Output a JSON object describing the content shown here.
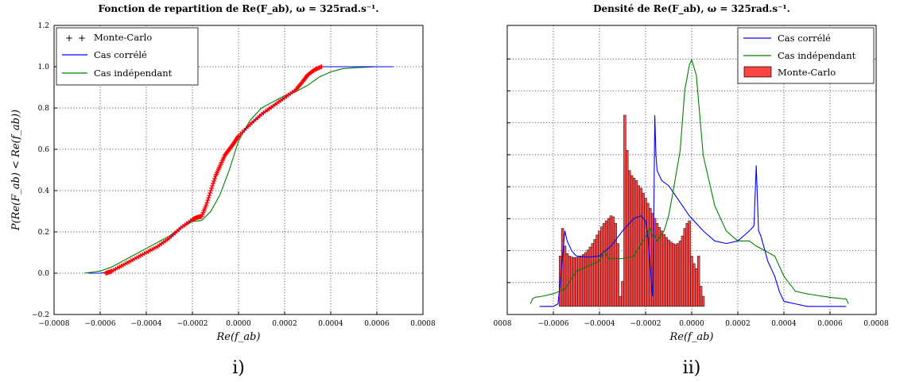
{
  "chart_data": [
    {
      "type": "line",
      "title": "Fonction de repartition de Re(F_ab), ω = 325rad.s⁻¹.",
      "xlabel": "Re(f_ab)",
      "ylabel": "P(Re(F_ab) < Re(f_ab))",
      "xlim": [
        -0.0008,
        0.0008
      ],
      "ylim": [
        -0.2,
        1.2
      ],
      "x_tick_labels": [
        "−0.0008",
        "−0.0006",
        "−0.0004",
        "−0.0002",
        "0.0000",
        "0.0002",
        "0.0004",
        "0.0006",
        "0.0008"
      ],
      "y_tick_labels": [
        "−0.2",
        "0.0",
        "0.2",
        "0.4",
        "0.6",
        "0.8",
        "1.0",
        "1.2"
      ],
      "grid": true,
      "legend_position": "top-left",
      "caption": "i)",
      "series": [
        {
          "name": "Monte-Carlo",
          "style": "markers",
          "color": "#ff0000",
          "x": [
            -0.000575,
            -0.00055,
            -0.0005,
            -0.00045,
            -0.0004,
            -0.00035,
            -0.0003,
            -0.00025,
            -0.0002,
            -0.00018,
            -0.00016,
            -0.00014,
            -0.00012,
            -0.0001,
            -8e-05,
            -6e-05,
            -4e-05,
            -2e-05,
            0.0,
            5e-05,
            0.0001,
            0.00015,
            0.0002,
            0.00025,
            0.00028,
            0.0003,
            0.00033,
            0.00036
          ],
          "y": [
            0.0,
            0.01,
            0.04,
            0.07,
            0.1,
            0.13,
            0.17,
            0.22,
            0.26,
            0.27,
            0.275,
            0.33,
            0.4,
            0.47,
            0.52,
            0.57,
            0.6,
            0.63,
            0.665,
            0.72,
            0.77,
            0.81,
            0.85,
            0.89,
            0.93,
            0.96,
            0.985,
            1.0
          ]
        },
        {
          "name": "Cas corrélé",
          "style": "line",
          "color": "#0000ff",
          "x": [
            -0.00065,
            -0.0006,
            -0.00055,
            -0.0005,
            -0.00045,
            -0.0004,
            -0.00035,
            -0.0003,
            -0.00025,
            -0.0002,
            -0.00016,
            -0.00012,
            -8e-05,
            -4e-05,
            0.0,
            5e-05,
            0.0001,
            0.00015,
            0.0002,
            0.00025,
            0.00028,
            0.0003,
            0.00033,
            0.00036,
            0.0004,
            0.0005,
            0.0006,
            0.00067
          ],
          "y": [
            0.0,
            0.0,
            0.01,
            0.04,
            0.07,
            0.1,
            0.13,
            0.17,
            0.22,
            0.26,
            0.275,
            0.4,
            0.52,
            0.6,
            0.66,
            0.72,
            0.77,
            0.81,
            0.85,
            0.89,
            0.93,
            0.96,
            0.985,
            1.0,
            1.0,
            1.0,
            1.0,
            1.0
          ]
        },
        {
          "name": "Cas indépendant",
          "style": "line",
          "color": "#008000",
          "x": [
            -0.00067,
            -0.0006,
            -0.00055,
            -0.0005,
            -0.00045,
            -0.0004,
            -0.00035,
            -0.0003,
            -0.00025,
            -0.0002,
            -0.00016,
            -0.00012,
            -8e-05,
            -4e-05,
            0.0,
            5e-05,
            0.0001,
            0.00015,
            0.0002,
            0.00025,
            0.0003,
            0.00035,
            0.0004,
            0.00045,
            0.0005,
            0.0006,
            0.00067
          ],
          "y": [
            0.0,
            0.01,
            0.03,
            0.06,
            0.09,
            0.12,
            0.15,
            0.18,
            0.22,
            0.25,
            0.255,
            0.3,
            0.38,
            0.5,
            0.64,
            0.74,
            0.8,
            0.83,
            0.86,
            0.88,
            0.91,
            0.95,
            0.975,
            0.99,
            0.995,
            1.0,
            1.0
          ]
        }
      ]
    },
    {
      "type": "bar",
      "title": "Densité de Re(F_ab), ω = 325rad.s⁻¹.",
      "xlabel": "Re(f_ab)",
      "xlim": [
        -0.0008,
        0.0008
      ],
      "x_tick_labels": [
        "0008",
        "−0.0006",
        "−0.0004",
        "−0.0002",
        "0.0000",
        "0.0002",
        "0.0004",
        "0.0006",
        "0.0008"
      ],
      "grid": true,
      "legend_position": "top-right",
      "caption": "ii)",
      "bins": {
        "start": -0.000575,
        "width": 1e-05,
        "name": "Monte-Carlo",
        "color": "#ff4444",
        "values": [
          0.1,
          0.155,
          0.12,
          0.105,
          0.1,
          0.098,
          0.097,
          0.097,
          0.098,
          0.1,
          0.103,
          0.107,
          0.112,
          0.118,
          0.125,
          0.133,
          0.142,
          0.15,
          0.158,
          0.165,
          0.17,
          0.175,
          0.18,
          0.178,
          0.165,
          0.125,
          0.02,
          0.05,
          0.38,
          0.31,
          0.27,
          0.26,
          0.255,
          0.25,
          0.24,
          0.235,
          0.225,
          0.215,
          0.205,
          0.195,
          0.185,
          0.175,
          0.165,
          0.157,
          0.15,
          0.143,
          0.137,
          0.132,
          0.128,
          0.125,
          0.123,
          0.125,
          0.13,
          0.14,
          0.155,
          0.165,
          0.17,
          0.1,
          0.085,
          0.075,
          0.1,
          0.04,
          0.02
        ]
      },
      "series": [
        {
          "name": "Cas corrélé",
          "style": "line",
          "color": "#0000ff",
          "x": [
            -0.00066,
            -0.0006,
            -0.00058,
            -0.00057,
            -0.00056,
            -0.00055,
            -0.00054,
            -0.00052,
            -0.0005,
            -0.00045,
            -0.0004,
            -0.00035,
            -0.0003,
            -0.00025,
            -0.00022,
            -0.0002,
            -0.00019,
            -0.00018,
            -0.00017,
            -0.000165,
            -0.00016,
            -0.000155,
            -0.00015,
            -0.00013,
            -0.0001,
            -7e-05,
            -4e-05,
            -1e-05,
            2e-05,
            5e-05,
            0.0001,
            0.00015,
            0.0002,
            0.00025,
            0.00027,
            0.00028,
            0.00029,
            0.0003,
            0.00033,
            0.00036,
            0.00038,
            0.0004,
            0.00045,
            0.0005,
            0.0006,
            0.00067
          ],
          "y": [
            0.0,
            0.0,
            0.005,
            0.05,
            0.1,
            0.15,
            0.13,
            0.11,
            0.1,
            0.098,
            0.1,
            0.12,
            0.15,
            0.175,
            0.18,
            0.17,
            0.14,
            0.08,
            0.02,
            0.15,
            0.38,
            0.3,
            0.27,
            0.25,
            0.24,
            0.22,
            0.2,
            0.18,
            0.165,
            0.15,
            0.13,
            0.125,
            0.13,
            0.15,
            0.16,
            0.28,
            0.15,
            0.14,
            0.09,
            0.06,
            0.03,
            0.01,
            0.005,
            0.0,
            0.0,
            0.0
          ]
        },
        {
          "name": "Cas indépendant",
          "style": "line",
          "color": "#008000",
          "x": [
            -0.0007,
            -0.00069,
            -0.00068,
            -0.00065,
            -0.0006,
            -0.00055,
            -0.0005,
            -0.00045,
            -0.0004,
            -0.00038,
            -0.00036,
            -0.0003,
            -0.00025,
            -0.0002,
            -0.00018,
            -0.00017,
            -0.00016,
            -0.00015,
            -0.00012,
            -0.0001,
            -8e-05,
            -5e-05,
            -3e-05,
            -1e-05,
            0.0,
            2e-05,
            5e-05,
            0.0001,
            0.00015,
            0.0002,
            0.00025,
            0.00028,
            0.00032,
            0.00036,
            0.0004,
            0.00045,
            0.0005,
            0.0006,
            0.00066,
            0.00067,
            0.00068
          ],
          "y": [
            0.005,
            0.015,
            0.018,
            0.02,
            0.025,
            0.035,
            0.07,
            0.08,
            0.09,
            0.11,
            0.095,
            0.095,
            0.1,
            0.14,
            0.155,
            0.14,
            0.14,
            0.13,
            0.15,
            0.18,
            0.23,
            0.31,
            0.43,
            0.48,
            0.49,
            0.46,
            0.3,
            0.2,
            0.15,
            0.13,
            0.13,
            0.12,
            0.11,
            0.1,
            0.06,
            0.03,
            0.025,
            0.018,
            0.015,
            0.015,
            0.005
          ]
        }
      ]
    }
  ]
}
